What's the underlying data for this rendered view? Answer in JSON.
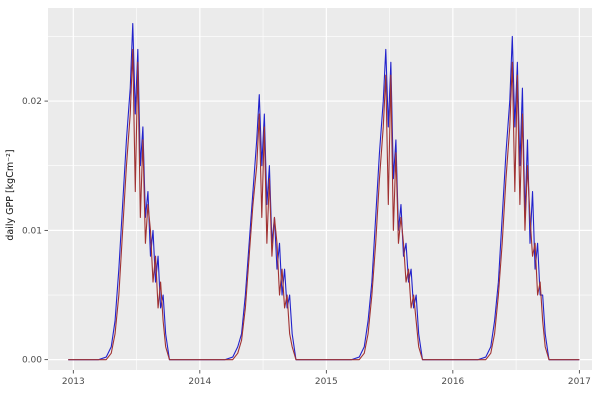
{
  "figure": {
    "background": "#FFFFFF"
  },
  "colors": {
    "panel_bg": "#EBEBEB",
    "grid": "#FFFFFF",
    "axis_text": "#4D4D4D",
    "tick_mark": "#333333",
    "series_blue": "#2222CC",
    "series_red": "#A03232"
  },
  "chart_data": {
    "type": "line",
    "title": "",
    "xlabel": "",
    "ylabel": "daily GPP [kgCm⁻²]",
    "legend": "none",
    "grid": true,
    "xlim": [
      2012.8,
      2017.1
    ],
    "ylim": [
      -0.0008,
      0.0272
    ],
    "x_ticks": [
      2013,
      2014,
      2015,
      2016,
      2017
    ],
    "x_tick_labels": [
      "2013",
      "2014",
      "2015",
      "2016",
      "2017"
    ],
    "x_minor_ticks": [
      2013.5,
      2014.5,
      2015.5,
      2016.5
    ],
    "y_ticks": [
      0,
      0.01,
      0.02
    ],
    "y_tick_labels": [
      "0.00",
      "0.01",
      "0.02"
    ],
    "y_minor_ticks": [
      0.005,
      0.015,
      0.025
    ],
    "x": [
      2012.96,
      2013.04,
      2013.12,
      2013.2,
      2013.26,
      2013.3,
      2013.33,
      2013.36,
      2013.39,
      2013.42,
      2013.45,
      2013.47,
      2013.49,
      2013.51,
      2013.53,
      2013.55,
      2013.57,
      2013.59,
      2013.61,
      2013.63,
      2013.65,
      2013.67,
      2013.69,
      2013.71,
      2013.73,
      2013.76,
      2013.82,
      2013.9,
      2013.97,
      2014.04,
      2014.12,
      2014.2,
      2014.26,
      2014.3,
      2014.33,
      2014.36,
      2014.39,
      2014.42,
      2014.45,
      2014.47,
      2014.49,
      2014.51,
      2014.53,
      2014.55,
      2014.57,
      2014.59,
      2014.61,
      2014.63,
      2014.65,
      2014.67,
      2014.69,
      2014.71,
      2014.73,
      2014.76,
      2014.82,
      2014.9,
      2014.97,
      2015.04,
      2015.12,
      2015.2,
      2015.26,
      2015.3,
      2015.33,
      2015.36,
      2015.39,
      2015.42,
      2015.45,
      2015.47,
      2015.49,
      2015.51,
      2015.53,
      2015.55,
      2015.57,
      2015.59,
      2015.61,
      2015.63,
      2015.65,
      2015.67,
      2015.69,
      2015.71,
      2015.73,
      2015.76,
      2015.82,
      2015.9,
      2015.97,
      2016.04,
      2016.12,
      2016.2,
      2016.26,
      2016.3,
      2016.33,
      2016.36,
      2016.39,
      2016.42,
      2016.45,
      2016.47,
      2016.49,
      2016.51,
      2016.53,
      2016.55,
      2016.57,
      2016.59,
      2016.61,
      2016.63,
      2016.65,
      2016.67,
      2016.69,
      2016.71,
      2016.73,
      2016.76,
      2016.82,
      2016.9,
      2016.97,
      2017.0
    ],
    "series": [
      {
        "name": "modelled-gpp-blue",
        "color": "#2222CC",
        "values": [
          0,
          0,
          0,
          0,
          0.0002,
          0.001,
          0.003,
          0.007,
          0.012,
          0.017,
          0.021,
          0.026,
          0.019,
          0.024,
          0.015,
          0.018,
          0.011,
          0.013,
          0.008,
          0.01,
          0.006,
          0.008,
          0.004,
          0.005,
          0.002,
          0,
          0,
          0,
          0,
          0,
          0,
          0,
          0.0002,
          0.001,
          0.002,
          0.005,
          0.009,
          0.013,
          0.017,
          0.0205,
          0.015,
          0.019,
          0.012,
          0.015,
          0.009,
          0.011,
          0.007,
          0.009,
          0.005,
          0.007,
          0.004,
          0.005,
          0.002,
          0,
          0,
          0,
          0,
          0,
          0,
          0,
          0.0002,
          0.001,
          0.003,
          0.006,
          0.011,
          0.016,
          0.02,
          0.024,
          0.018,
          0.023,
          0.014,
          0.017,
          0.01,
          0.012,
          0.008,
          0.009,
          0.006,
          0.007,
          0.004,
          0.005,
          0.002,
          0,
          0,
          0,
          0,
          0,
          0,
          0,
          0.0002,
          0.001,
          0.003,
          0.006,
          0.011,
          0.016,
          0.02,
          0.025,
          0.018,
          0.023,
          0.015,
          0.021,
          0.011,
          0.017,
          0.009,
          0.013,
          0.007,
          0.009,
          0.005,
          0.005,
          0.002,
          0,
          0,
          0,
          0,
          0
        ]
      },
      {
        "name": "observed-gpp-red",
        "color": "#A03232",
        "values": [
          0,
          0,
          0,
          0,
          0,
          0.0005,
          0.002,
          0.005,
          0.01,
          0.015,
          0.019,
          0.024,
          0.013,
          0.023,
          0.011,
          0.017,
          0.009,
          0.012,
          0.01,
          0.006,
          0.008,
          0.004,
          0.006,
          0.003,
          0.001,
          0,
          0,
          0,
          0,
          0,
          0,
          0,
          0,
          0.0005,
          0.0015,
          0.004,
          0.008,
          0.012,
          0.015,
          0.019,
          0.011,
          0.018,
          0.009,
          0.014,
          0.008,
          0.011,
          0.009,
          0.005,
          0.007,
          0.004,
          0.005,
          0.002,
          0.001,
          0,
          0,
          0,
          0,
          0,
          0,
          0,
          0,
          0.0005,
          0.002,
          0.005,
          0.009,
          0.014,
          0.018,
          0.022,
          0.012,
          0.022,
          0.01,
          0.016,
          0.009,
          0.011,
          0.009,
          0.006,
          0.007,
          0.004,
          0.005,
          0.003,
          0.001,
          0,
          0,
          0,
          0,
          0,
          0,
          0,
          0,
          0.0005,
          0.002,
          0.005,
          0.009,
          0.014,
          0.018,
          0.023,
          0.013,
          0.022,
          0.012,
          0.019,
          0.01,
          0.015,
          0.011,
          0.008,
          0.009,
          0.005,
          0.006,
          0.003,
          0.001,
          0,
          0,
          0,
          0,
          0
        ]
      }
    ]
  }
}
